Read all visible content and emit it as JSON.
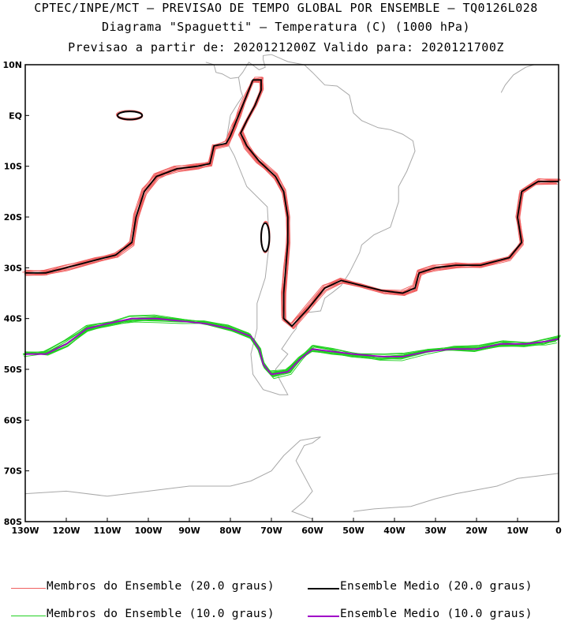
{
  "title": {
    "line1": "CPTEC/INPE/MCT – PREVISAO DE TEMPO GLOBAL POR ENSEMBLE – TQ0126L028",
    "line2": "Diagrama \"Spaguetti\" – Temperatura (C) (1000 hPa)",
    "line3": "Previsao a partir de: 2020121200Z  Valido para: 2020121700Z"
  },
  "chart_data": {
    "type": "line",
    "projection": "lat-lon",
    "xlim": [
      -130,
      0
    ],
    "ylim": [
      -80,
      10
    ],
    "x_ticks": [
      {
        "value": -130,
        "label": "130W"
      },
      {
        "value": -120,
        "label": "120W"
      },
      {
        "value": -110,
        "label": "110W"
      },
      {
        "value": -100,
        "label": "100W"
      },
      {
        "value": -90,
        "label": "90W"
      },
      {
        "value": -80,
        "label": "80W"
      },
      {
        "value": -70,
        "label": "70W"
      },
      {
        "value": -60,
        "label": "60W"
      },
      {
        "value": -50,
        "label": "50W"
      },
      {
        "value": -40,
        "label": "40W"
      },
      {
        "value": -30,
        "label": "30W"
      },
      {
        "value": -20,
        "label": "20W"
      },
      {
        "value": -10,
        "label": "10W"
      },
      {
        "value": 0,
        "label": "0"
      }
    ],
    "y_ticks": [
      {
        "value": 10,
        "label": "10N"
      },
      {
        "value": 0,
        "label": "EQ"
      },
      {
        "value": -10,
        "label": "10S"
      },
      {
        "value": -20,
        "label": "20S"
      },
      {
        "value": -30,
        "label": "30S"
      },
      {
        "value": -40,
        "label": "40S"
      },
      {
        "value": -50,
        "label": "50S"
      },
      {
        "value": -60,
        "label": "60S"
      },
      {
        "value": -70,
        "label": "70S"
      },
      {
        "value": -80,
        "label": "80S"
      }
    ],
    "grid": false,
    "colors": {
      "members_20": "#f06060",
      "mean_20": "#000000",
      "members_10": "#22d022",
      "mean_10": "#a000c8",
      "coast": "#a8a8a8"
    },
    "series": [
      {
        "name": "Ensemble Medio (20.0 graus)",
        "role": "mean_20",
        "points": [
          [
            -130,
            -31
          ],
          [
            -125,
            -31
          ],
          [
            -120,
            -30
          ],
          [
            -113,
            -28.5
          ],
          [
            -108,
            -27.5
          ],
          [
            -104,
            -25
          ],
          [
            -103,
            -20
          ],
          [
            -101,
            -15
          ],
          [
            -98,
            -12
          ],
          [
            -93,
            -10.5
          ],
          [
            -88,
            -10
          ],
          [
            -85,
            -9.5
          ],
          [
            -84,
            -6
          ],
          [
            -81,
            -5.5
          ],
          [
            -80,
            -4
          ],
          [
            -79,
            -2
          ],
          [
            -78,
            0
          ],
          [
            -77,
            2
          ],
          [
            -76,
            4
          ],
          [
            -75,
            6
          ],
          [
            -74.5,
            7
          ],
          [
            -72.5,
            7
          ],
          [
            -72.5,
            5
          ],
          [
            -74,
            2
          ],
          [
            -76,
            -1
          ],
          [
            -77.5,
            -3.5
          ],
          [
            -76,
            -6
          ],
          [
            -73,
            -9
          ],
          [
            -69,
            -12
          ],
          [
            -67,
            -15
          ],
          [
            -66,
            -20
          ],
          [
            -66,
            -25
          ],
          [
            -66.5,
            -30
          ],
          [
            -67,
            -35
          ],
          [
            -67,
            -40
          ],
          [
            -65,
            -41.5
          ],
          [
            -61,
            -38
          ],
          [
            -57,
            -34
          ],
          [
            -53,
            -32.5
          ],
          [
            -48,
            -33.5
          ],
          [
            -43,
            -34.5
          ],
          [
            -38,
            -35
          ],
          [
            -35,
            -34
          ],
          [
            -34,
            -31
          ],
          [
            -30,
            -30
          ],
          [
            -25,
            -29.5
          ],
          [
            -19,
            -29.5
          ],
          [
            -12,
            -28
          ],
          [
            -9,
            -25
          ],
          [
            -10,
            -20
          ],
          [
            -9,
            -15
          ],
          [
            -5,
            -13
          ],
          [
            0,
            -13
          ]
        ]
      },
      {
        "name": "Ensemble Medio (10.0 graus)",
        "role": "mean_10",
        "points": [
          [
            -130,
            -47
          ],
          [
            -125,
            -47
          ],
          [
            -120,
            -45
          ],
          [
            -115,
            -42
          ],
          [
            -110,
            -41
          ],
          [
            -104,
            -40
          ],
          [
            -98,
            -40
          ],
          [
            -92,
            -40.5
          ],
          [
            -86,
            -41
          ],
          [
            -80,
            -42
          ],
          [
            -75,
            -43.5
          ],
          [
            -73,
            -46
          ],
          [
            -72,
            -49
          ],
          [
            -70,
            -51
          ],
          [
            -66,
            -50.5
          ],
          [
            -63,
            -48
          ],
          [
            -60,
            -46
          ],
          [
            -55,
            -46.5
          ],
          [
            -50,
            -47
          ],
          [
            -43,
            -47.5
          ],
          [
            -38,
            -47.5
          ],
          [
            -32,
            -46.5
          ],
          [
            -26,
            -46
          ],
          [
            -20,
            -46
          ],
          [
            -14,
            -45
          ],
          [
            -8,
            -45
          ],
          [
            -3,
            -44.5
          ],
          [
            0,
            -44
          ]
        ]
      },
      {
        "name": "Membros do Ensemble (20.0 graus)",
        "role": "members_20"
      },
      {
        "name": "Membros do Ensemble (10.0 graus)",
        "role": "members_10"
      }
    ],
    "closed_contours_20": [
      {
        "center": [
          -104.5,
          0
        ],
        "rx": 3,
        "ry": 0.8
      },
      {
        "center": [
          -71.5,
          -24
        ],
        "rx": 1.0,
        "ry": 2.8
      }
    ],
    "legend": {
      "placement": "bottom",
      "entries": [
        {
          "label": "Membros do Ensemble (20.0 graus)",
          "color": "#f06060"
        },
        {
          "label": "Ensemble Medio (20.0 graus)",
          "color": "#000000"
        },
        {
          "label": "Membros do Ensemble (10.0 graus)",
          "color": "#22d022"
        },
        {
          "label": "Ensemble Medio (10.0 graus)",
          "color": "#a000c8"
        }
      ]
    },
    "coastline": {
      "south_america": [
        [
          -80,
          0
        ],
        [
          -81,
          -5
        ],
        [
          -79,
          -8
        ],
        [
          -76,
          -14
        ],
        [
          -71,
          -18
        ],
        [
          -70.5,
          -25
        ],
        [
          -71.5,
          -32
        ],
        [
          -73.5,
          -37
        ],
        [
          -73.5,
          -42
        ],
        [
          -75,
          -47
        ],
        [
          -74.5,
          -51
        ],
        [
          -72,
          -54
        ],
        [
          -68,
          -55
        ],
        [
          -66,
          -55
        ],
        [
          -68,
          -52
        ],
        [
          -69,
          -50
        ],
        [
          -66,
          -47
        ],
        [
          -67.5,
          -46
        ],
        [
          -65,
          -43
        ],
        [
          -64,
          -42
        ],
        [
          -63,
          -39
        ],
        [
          -58,
          -38.5
        ],
        [
          -57,
          -36
        ],
        [
          -55,
          -34.8
        ],
        [
          -53,
          -33.5
        ],
        [
          -51,
          -31
        ],
        [
          -48.5,
          -27
        ],
        [
          -48,
          -25.5
        ],
        [
          -45,
          -23.5
        ],
        [
          -41,
          -22
        ],
        [
          -39,
          -17
        ],
        [
          -39,
          -14
        ],
        [
          -37,
          -11
        ],
        [
          -35,
          -7
        ],
        [
          -35.5,
          -5
        ],
        [
          -38,
          -3.7
        ],
        [
          -41,
          -2.8
        ],
        [
          -44,
          -2.4
        ],
        [
          -48,
          -1
        ],
        [
          -50,
          0.5
        ],
        [
          -51,
          4
        ],
        [
          -54,
          5.8
        ],
        [
          -57,
          6
        ],
        [
          -60,
          8.5
        ],
        [
          -62,
          10
        ],
        [
          -66,
          10.6
        ],
        [
          -70,
          12
        ],
        [
          -72,
          11.8
        ],
        [
          -72,
          11
        ],
        [
          -71.5,
          9.5
        ],
        [
          -73,
          9
        ],
        [
          -75.5,
          10.5
        ],
        [
          -77,
          8.5
        ],
        [
          -78,
          7.5
        ],
        [
          -77.5,
          5
        ],
        [
          -77,
          3.8
        ],
        [
          -78.5,
          2
        ],
        [
          -80,
          0
        ]
      ],
      "central_america": [
        [
          -78,
          7.5
        ],
        [
          -80,
          7.3
        ],
        [
          -82,
          8.2
        ],
        [
          -83.5,
          8.5
        ],
        [
          -84,
          10
        ],
        [
          -86,
          10.5
        ]
      ],
      "africa": [
        [
          -6,
          10
        ],
        [
          -8,
          9.5
        ],
        [
          -11,
          8
        ],
        [
          -13,
          6
        ],
        [
          -14,
          4.5
        ]
      ],
      "antarctica": [
        [
          -130,
          -74.5
        ],
        [
          -120,
          -74
        ],
        [
          -110,
          -75
        ],
        [
          -100,
          -74
        ],
        [
          -90,
          -73
        ],
        [
          -80,
          -73
        ],
        [
          -75,
          -72
        ],
        [
          -70,
          -70
        ],
        [
          -67,
          -67
        ],
        [
          -63,
          -64
        ],
        [
          -58,
          -63.3
        ],
        [
          -60,
          -64.5
        ],
        [
          -62,
          -65
        ],
        [
          -64,
          -68
        ],
        [
          -62,
          -71
        ],
        [
          -60,
          -74
        ],
        [
          -62,
          -76
        ],
        [
          -65,
          -78
        ],
        [
          -60,
          -79.5
        ]
      ],
      "weddell": [
        [
          -50,
          -78
        ],
        [
          -45,
          -77.5
        ],
        [
          -36,
          -77
        ],
        [
          -30,
          -75.5
        ],
        [
          -25,
          -74.5
        ],
        [
          -15,
          -73
        ],
        [
          -10,
          -71.5
        ],
        [
          -5,
          -71
        ],
        [
          0,
          -70.5
        ]
      ]
    }
  }
}
